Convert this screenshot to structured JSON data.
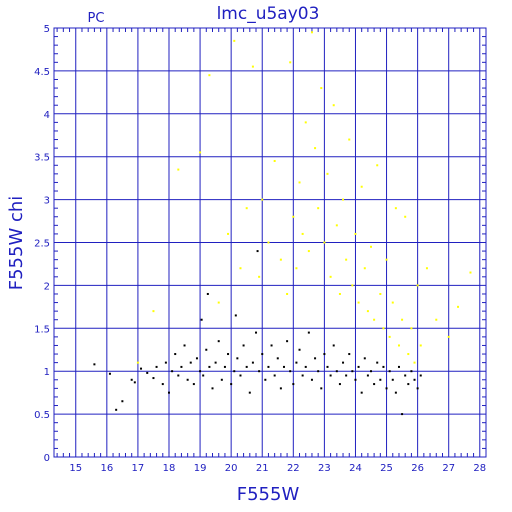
{
  "chart_data": {
    "type": "scatter",
    "title": "lmc_u5ay03",
    "corner_label": "PC",
    "xlabel": "F555W",
    "ylabel": "F555W chi",
    "xlim": [
      14.3,
      28.2
    ],
    "ylim": [
      0,
      5
    ],
    "x_ticks": [
      15,
      16,
      17,
      18,
      19,
      20,
      21,
      22,
      23,
      24,
      25,
      26,
      27,
      28
    ],
    "y_ticks": [
      0,
      0.5,
      1,
      1.5,
      2,
      2.5,
      3,
      3.5,
      4,
      4.5,
      5
    ],
    "y_tick_labels": [
      "0",
      "0.5",
      "1",
      "1.5",
      "2",
      "2.5",
      "3",
      "3.5",
      "4",
      "4.5",
      "5"
    ],
    "grid": true,
    "colors": {
      "axis": "#2020c0",
      "grid": "#2020c0",
      "series_good": "#000000",
      "series_rejected": "#ffff00"
    },
    "series": [
      {
        "color": "#000000",
        "points": [
          [
            15.6,
            1.08
          ],
          [
            16.1,
            0.97
          ],
          [
            16.3,
            0.55
          ],
          [
            16.5,
            0.65
          ],
          [
            16.8,
            0.9
          ],
          [
            16.9,
            0.87
          ],
          [
            17.1,
            1.03
          ],
          [
            17.3,
            0.98
          ],
          [
            17.5,
            0.92
          ],
          [
            17.6,
            1.05
          ],
          [
            17.8,
            0.85
          ],
          [
            17.9,
            1.1
          ],
          [
            18.0,
            0.75
          ],
          [
            18.1,
            1.0
          ],
          [
            18.2,
            1.2
          ],
          [
            18.3,
            0.95
          ],
          [
            18.4,
            1.05
          ],
          [
            18.5,
            1.3
          ],
          [
            18.6,
            0.9
          ],
          [
            18.7,
            1.1
          ],
          [
            18.8,
            0.85
          ],
          [
            18.9,
            1.15
          ],
          [
            19.0,
            1.0
          ],
          [
            19.05,
            1.6
          ],
          [
            19.1,
            0.95
          ],
          [
            19.2,
            1.25
          ],
          [
            19.25,
            1.9
          ],
          [
            19.3,
            1.05
          ],
          [
            19.4,
            0.8
          ],
          [
            19.5,
            1.1
          ],
          [
            19.6,
            1.35
          ],
          [
            19.7,
            0.9
          ],
          [
            19.8,
            1.05
          ],
          [
            19.9,
            1.2
          ],
          [
            20.0,
            0.85
          ],
          [
            20.1,
            1.0
          ],
          [
            20.15,
            1.65
          ],
          [
            20.2,
            1.15
          ],
          [
            20.3,
            0.95
          ],
          [
            20.4,
            1.3
          ],
          [
            20.5,
            1.05
          ],
          [
            20.6,
            0.75
          ],
          [
            20.7,
            1.1
          ],
          [
            20.8,
            1.45
          ],
          [
            20.85,
            2.4
          ],
          [
            20.9,
            1.0
          ],
          [
            21.0,
            1.2
          ],
          [
            21.1,
            0.9
          ],
          [
            21.2,
            1.05
          ],
          [
            21.3,
            1.3
          ],
          [
            21.4,
            0.95
          ],
          [
            21.5,
            1.15
          ],
          [
            21.6,
            0.8
          ],
          [
            21.7,
            1.05
          ],
          [
            21.8,
            1.35
          ],
          [
            21.9,
            1.0
          ],
          [
            22.0,
            0.85
          ],
          [
            22.1,
            1.1
          ],
          [
            22.2,
            1.25
          ],
          [
            22.3,
            0.95
          ],
          [
            22.4,
            1.05
          ],
          [
            22.5,
            1.45
          ],
          [
            22.6,
            0.9
          ],
          [
            22.7,
            1.15
          ],
          [
            22.8,
            1.0
          ],
          [
            22.9,
            0.8
          ],
          [
            23.0,
            1.2
          ],
          [
            23.1,
            1.05
          ],
          [
            23.2,
            0.95
          ],
          [
            23.3,
            1.3
          ],
          [
            23.4,
            1.0
          ],
          [
            23.5,
            0.85
          ],
          [
            23.6,
            1.1
          ],
          [
            23.7,
            0.95
          ],
          [
            23.8,
            1.2
          ],
          [
            23.9,
            1.0
          ],
          [
            24.0,
            0.9
          ],
          [
            24.1,
            1.05
          ],
          [
            24.2,
            0.75
          ],
          [
            24.3,
            1.15
          ],
          [
            24.4,
            0.95
          ],
          [
            24.5,
            1.0
          ],
          [
            24.6,
            0.85
          ],
          [
            24.7,
            1.1
          ],
          [
            24.8,
            0.9
          ],
          [
            24.9,
            1.05
          ],
          [
            25.0,
            0.8
          ],
          [
            25.1,
            1.0
          ],
          [
            25.2,
            0.9
          ],
          [
            25.3,
            0.75
          ],
          [
            25.4,
            1.05
          ],
          [
            25.5,
            0.5
          ],
          [
            25.6,
            0.95
          ],
          [
            25.7,
            0.85
          ],
          [
            25.8,
            1.0
          ],
          [
            25.9,
            0.9
          ],
          [
            26.0,
            0.8
          ],
          [
            26.1,
            0.95
          ]
        ]
      },
      {
        "color": "#ffff00",
        "points": [
          [
            17.0,
            1.1
          ],
          [
            17.5,
            1.7
          ],
          [
            18.3,
            3.35
          ],
          [
            19.0,
            3.55
          ],
          [
            19.3,
            4.45
          ],
          [
            19.6,
            1.8
          ],
          [
            19.9,
            2.6
          ],
          [
            20.1,
            4.85
          ],
          [
            20.3,
            2.2
          ],
          [
            20.5,
            2.9
          ],
          [
            20.7,
            4.55
          ],
          [
            20.9,
            2.1
          ],
          [
            21.0,
            3.0
          ],
          [
            21.2,
            2.5
          ],
          [
            21.4,
            3.45
          ],
          [
            21.6,
            2.3
          ],
          [
            21.8,
            1.9
          ],
          [
            21.9,
            4.6
          ],
          [
            22.0,
            2.8
          ],
          [
            22.1,
            2.2
          ],
          [
            22.2,
            3.2
          ],
          [
            22.3,
            2.6
          ],
          [
            22.4,
            3.9
          ],
          [
            22.5,
            2.4
          ],
          [
            22.6,
            4.95
          ],
          [
            22.7,
            3.6
          ],
          [
            22.8,
            2.9
          ],
          [
            22.9,
            4.3
          ],
          [
            23.0,
            2.5
          ],
          [
            23.1,
            3.3
          ],
          [
            23.2,
            2.1
          ],
          [
            23.3,
            4.1
          ],
          [
            23.4,
            2.7
          ],
          [
            23.5,
            1.9
          ],
          [
            23.6,
            3.0
          ],
          [
            23.7,
            2.3
          ],
          [
            23.8,
            3.7
          ],
          [
            23.9,
            2.0
          ],
          [
            24.0,
            2.6
          ],
          [
            24.1,
            1.8
          ],
          [
            24.2,
            3.15
          ],
          [
            24.3,
            2.2
          ],
          [
            24.4,
            1.7
          ],
          [
            24.5,
            2.45
          ],
          [
            24.6,
            1.6
          ],
          [
            24.7,
            3.4
          ],
          [
            24.8,
            1.9
          ],
          [
            24.9,
            1.5
          ],
          [
            25.0,
            2.3
          ],
          [
            25.1,
            1.4
          ],
          [
            25.2,
            1.8
          ],
          [
            25.3,
            2.9
          ],
          [
            25.4,
            1.3
          ],
          [
            25.5,
            1.6
          ],
          [
            25.6,
            2.8
          ],
          [
            25.7,
            1.2
          ],
          [
            25.8,
            1.5
          ],
          [
            25.9,
            1.1
          ],
          [
            26.0,
            2.0
          ],
          [
            26.1,
            1.3
          ],
          [
            26.3,
            2.2
          ],
          [
            26.6,
            1.6
          ],
          [
            27.0,
            1.4
          ],
          [
            27.3,
            1.75
          ],
          [
            27.7,
            2.15
          ]
        ]
      }
    ]
  }
}
